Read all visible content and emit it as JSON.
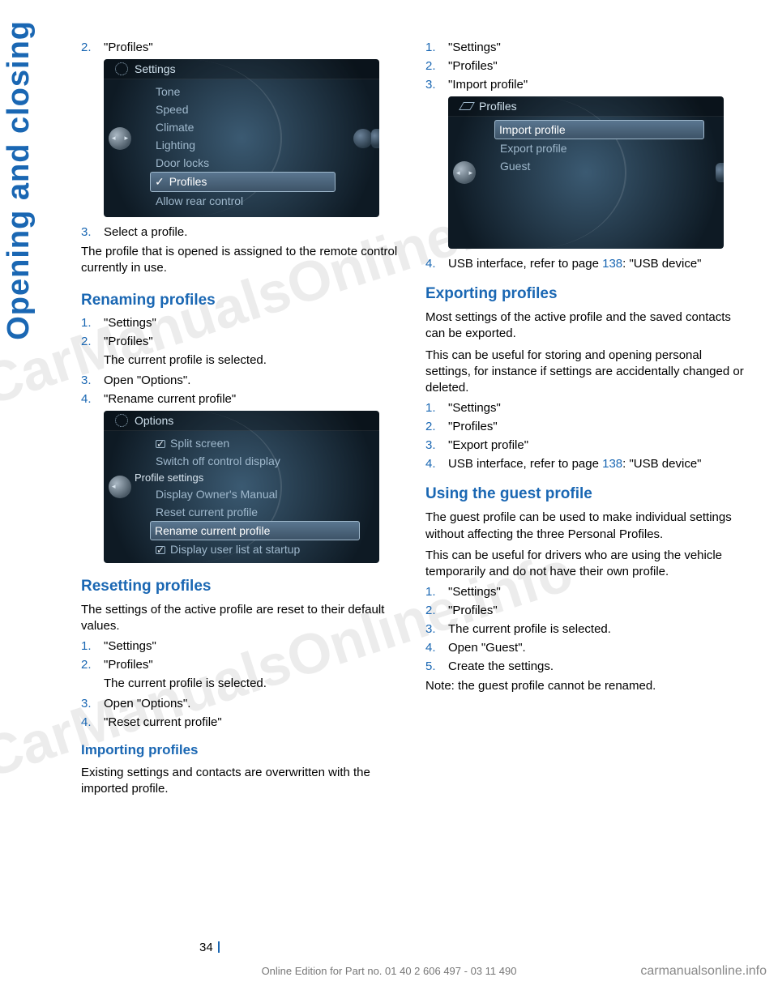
{
  "side_tab": "Opening and closing",
  "watermark": "CarManualsOnline.info",
  "left": {
    "intro_item": {
      "num": "2.",
      "text": "\"Profiles\""
    },
    "screenshot1": {
      "title": "Settings",
      "items": [
        "Tone",
        "Speed",
        "Climate",
        "Lighting",
        "Door locks",
        "Profiles",
        "Allow rear control"
      ],
      "selected": "Profiles"
    },
    "after_ss1": {
      "num": "3.",
      "text": "Select a profile."
    },
    "para1": "The profile that is opened is assigned to the re­mote control currently in use.",
    "renaming": {
      "heading": "Renaming profiles",
      "steps": [
        {
          "num": "1.",
          "text": "\"Settings\""
        },
        {
          "num": "2.",
          "text": "\"Profiles\"",
          "sub": "The current profile is selected."
        },
        {
          "num": "3.",
          "text": "Open \"Options\"."
        },
        {
          "num": "4.",
          "text": "\"Rename current profile\""
        }
      ]
    },
    "screenshot2": {
      "title": "Options",
      "rows": [
        {
          "type": "chk",
          "on": true,
          "label": "Split screen"
        },
        {
          "type": "item",
          "label": "Switch off control display"
        },
        {
          "type": "section",
          "label": "Profile settings"
        },
        {
          "type": "item",
          "label": "Display Owner's Manual"
        },
        {
          "type": "item",
          "label": "Reset current profile"
        },
        {
          "type": "sel",
          "label": "Rename current profile"
        },
        {
          "type": "chk",
          "on": true,
          "label": "Display user list at startup"
        }
      ]
    },
    "resetting": {
      "heading": "Resetting profiles",
      "intro": "The settings of the active profile are reset to their default values.",
      "steps": [
        {
          "num": "1.",
          "text": "\"Settings\""
        },
        {
          "num": "2.",
          "text": "\"Profiles\"",
          "sub": "The current profile is selected."
        },
        {
          "num": "3.",
          "text": "Open \"Options\"."
        },
        {
          "num": "4.",
          "text": "\"Reset current profile\""
        }
      ]
    },
    "importing": {
      "heading": "Importing profiles",
      "intro": "Existing settings and contacts are overwritten with the imported profile."
    }
  },
  "right": {
    "top_steps": [
      {
        "num": "1.",
        "text": "\"Settings\""
      },
      {
        "num": "2.",
        "text": "\"Profiles\""
      },
      {
        "num": "3.",
        "text": "\"Import profile\""
      }
    ],
    "screenshot3": {
      "title": "Profiles",
      "items": [
        "Import profile",
        "Export profile",
        "Guest"
      ],
      "selected": "Import profile"
    },
    "step4": {
      "num": "4.",
      "pre": "USB interface, refer to page ",
      "link": "138",
      "post": ": \"USB device\""
    },
    "exporting": {
      "heading": "Exporting profiles",
      "p1": "Most settings of the active profile and the saved contacts can be exported.",
      "p2": "This can be useful for storing and opening per­sonal settings, for instance if settings are acci­dentally changed or deleted.",
      "steps": [
        {
          "num": "1.",
          "text": "\"Settings\""
        },
        {
          "num": "2.",
          "text": "\"Profiles\""
        },
        {
          "num": "3.",
          "text": "\"Export profile\""
        }
      ],
      "step4": {
        "num": "4.",
        "pre": "USB interface, refer to page ",
        "link": "138",
        "post": ": \"USB device\""
      }
    },
    "guest": {
      "heading": "Using the guest profile",
      "p1": "The guest profile can be used to make individual settings without affecting the three Personal Profiles.",
      "p2": "This can be useful for drivers who are using the vehicle temporarily and do not have their own profile.",
      "steps": [
        {
          "num": "1.",
          "text": "\"Settings\""
        },
        {
          "num": "2.",
          "text": "\"Profiles\""
        },
        {
          "num": "3.",
          "text": "The current profile is selected."
        },
        {
          "num": "4.",
          "text": "Open \"Guest\"."
        },
        {
          "num": "5.",
          "text": "Create the settings."
        }
      ],
      "note": "Note: the guest profile cannot be renamed."
    }
  },
  "page_number": "34",
  "footer": "Online Edition for Part no. 01 40 2 606 497 - 03 11 490",
  "footer_link": "carmanualsonline.info"
}
